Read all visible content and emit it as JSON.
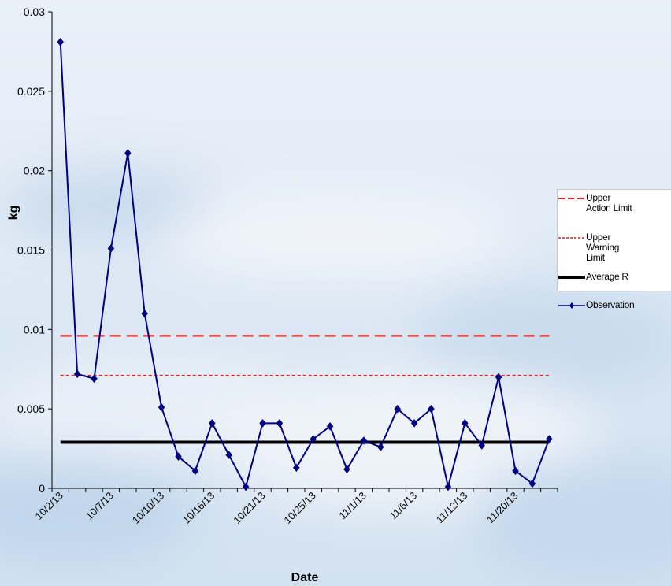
{
  "chart_data": {
    "type": "line",
    "title": "",
    "xlabel": "Date",
    "ylabel": "kg",
    "ylim": [
      0,
      0.03
    ],
    "y_ticks": [
      "0",
      "0.005",
      "0.01",
      "0.015",
      "0.02",
      "0.025",
      "0.03"
    ],
    "x_tick_labels": [
      "10/2/13",
      "10/7/13",
      "10/10/13",
      "10/16/13",
      "10/21/13",
      "10/25/13",
      "11/1/13",
      "11/6/13",
      "11/12/13",
      "11/20/13"
    ],
    "x_tick_label_at_observation": [
      0,
      3,
      6,
      9,
      12,
      15,
      18,
      21,
      24,
      27
    ],
    "grid": false,
    "legend_position": "right",
    "series": [
      {
        "name": "Upper Action Limit",
        "kind": "horizontal-line",
        "style": "dashed",
        "color": "#e2221c",
        "value": 0.0096
      },
      {
        "name": "Upper Warning Limit",
        "kind": "horizontal-line",
        "style": "dotted",
        "color": "#e2221c",
        "value": 0.0071
      },
      {
        "name": "Average R",
        "kind": "horizontal-line",
        "style": "solid-thick",
        "color": "#000000",
        "value": 0.0029
      },
      {
        "name": "Observation",
        "kind": "line-markers",
        "color": "#000080",
        "marker": "diamond",
        "values": [
          0.0281,
          0.0072,
          0.0069,
          0.0151,
          0.0211,
          0.011,
          0.0051,
          0.002,
          0.0011,
          0.0041,
          0.0021,
          0.0001,
          0.0041,
          0.0041,
          0.0013,
          0.0031,
          0.0039,
          0.0012,
          0.003,
          0.0026,
          0.005,
          0.0041,
          0.005,
          0.0001,
          0.0041,
          0.0027,
          0.007,
          0.0011,
          0.0003,
          0.0031
        ]
      }
    ]
  },
  "legend": {
    "items": [
      {
        "lines": [
          "Upper",
          "Action Limit"
        ]
      },
      {
        "lines": [
          "Upper",
          "Warning",
          "Limit"
        ]
      },
      {
        "lines": [
          "Average R"
        ]
      },
      {
        "lines": [
          "Observation"
        ]
      }
    ]
  }
}
